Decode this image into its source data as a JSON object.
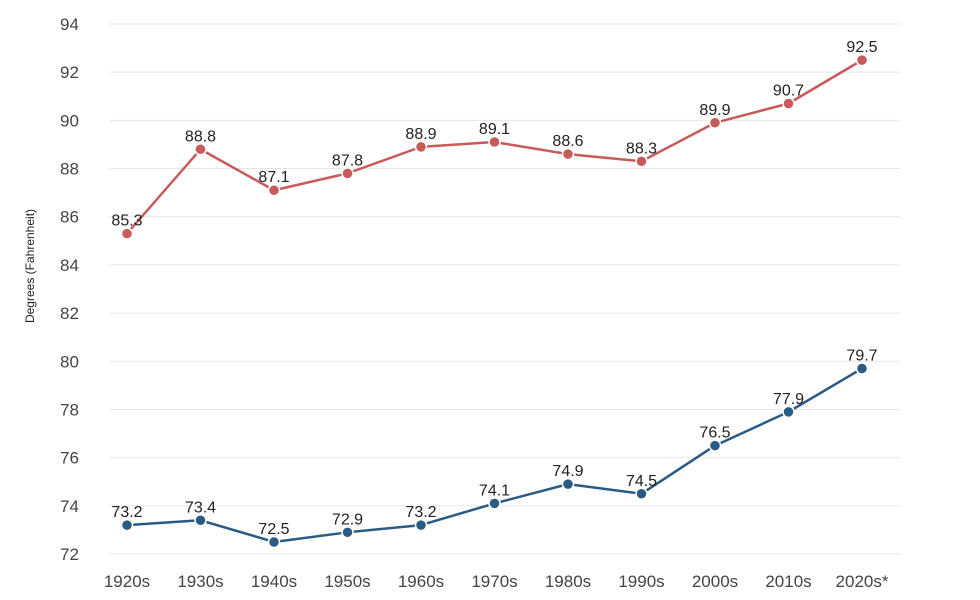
{
  "chart_data": {
    "type": "line",
    "title": "",
    "xlabel": "",
    "ylabel": "Degrees (Fahrenheit)",
    "categories": [
      "1920s",
      "1930s",
      "1940s",
      "1950s",
      "1960s",
      "1970s",
      "1980s",
      "1990s",
      "2000s",
      "2010s",
      "2020s*"
    ],
    "ylim": [
      72,
      94
    ],
    "yticks": [
      72,
      74,
      76,
      78,
      80,
      82,
      84,
      86,
      88,
      90,
      92,
      94
    ],
    "grid": true,
    "legend": "none",
    "series": [
      {
        "color": "#c85a5a",
        "values": [
          85.3,
          88.8,
          87.1,
          87.8,
          88.9,
          89.1,
          88.6,
          88.3,
          89.9,
          90.7,
          92.5
        ]
      },
      {
        "color": "#2a5b84",
        "values": [
          73.2,
          73.4,
          72.5,
          72.9,
          73.2,
          74.1,
          74.9,
          74.5,
          76.5,
          77.9,
          79.7
        ]
      }
    ]
  }
}
